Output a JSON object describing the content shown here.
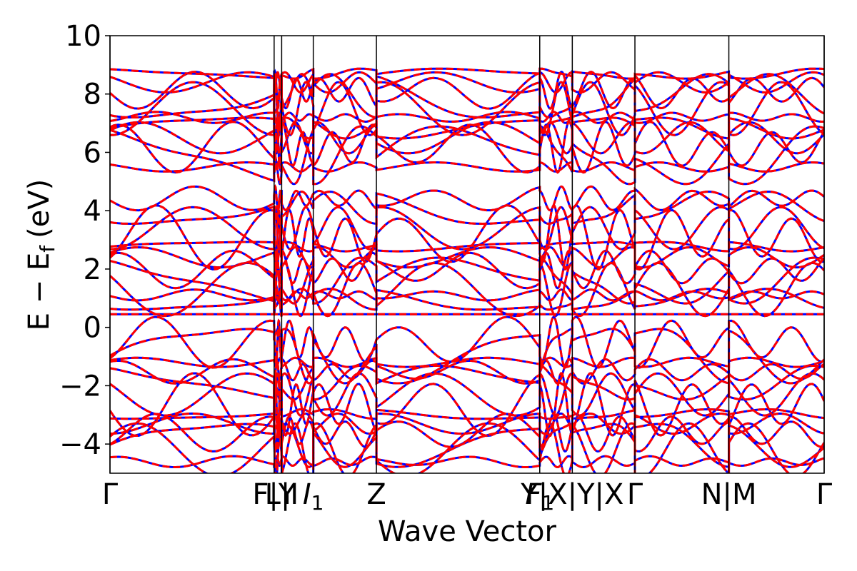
{
  "chart_data": {
    "type": "line",
    "xlabel": "Wave Vector",
    "ylabel": "E − E",
    "ylabel_sub": "f",
    "ylabel_unit": "(eV)",
    "ylim": [
      -5,
      10
    ],
    "yticks": [
      -4,
      -2,
      0,
      2,
      4,
      6,
      8,
      10
    ],
    "ytick_labels": [
      "−4",
      "−2",
      "0",
      "2",
      "4",
      "6",
      "8",
      "10"
    ],
    "xlim": [
      0,
      1
    ],
    "kpoints": [
      {
        "pos": 0.0,
        "label": "Γ",
        "type": "plain"
      },
      {
        "pos": 0.2985,
        "label": "F|Y",
        "type": "plain"
      },
      {
        "pos": 0.3122,
        "label": "L|I",
        "type": "plain"
      },
      {
        "pos": 0.3697,
        "label": "I",
        "sub": "1",
        "type": "italic"
      },
      {
        "pos": 0.4845,
        "label": "Z",
        "type": "plain"
      },
      {
        "pos": 0.7815,
        "label": "F",
        "sub": "1",
        "type": "italic"
      },
      {
        "pos": 0.8407,
        "label": "Y|X|Y|X",
        "type": "mixed"
      },
      {
        "pos": 0.9546,
        "label": "Γ",
        "type": "plain"
      },
      {
        "pos": 1.1254,
        "label": "N|M",
        "type": "plain"
      },
      {
        "pos": 1.2987,
        "label": "Γ",
        "type": "plain"
      }
    ],
    "series": [
      {
        "color": "#0000ff",
        "style": "solid"
      },
      {
        "color": "#ff0000",
        "style": "dashed"
      }
    ],
    "colors": {
      "spin_up": "#0000ff",
      "spin_down": "#ff0000"
    }
  }
}
